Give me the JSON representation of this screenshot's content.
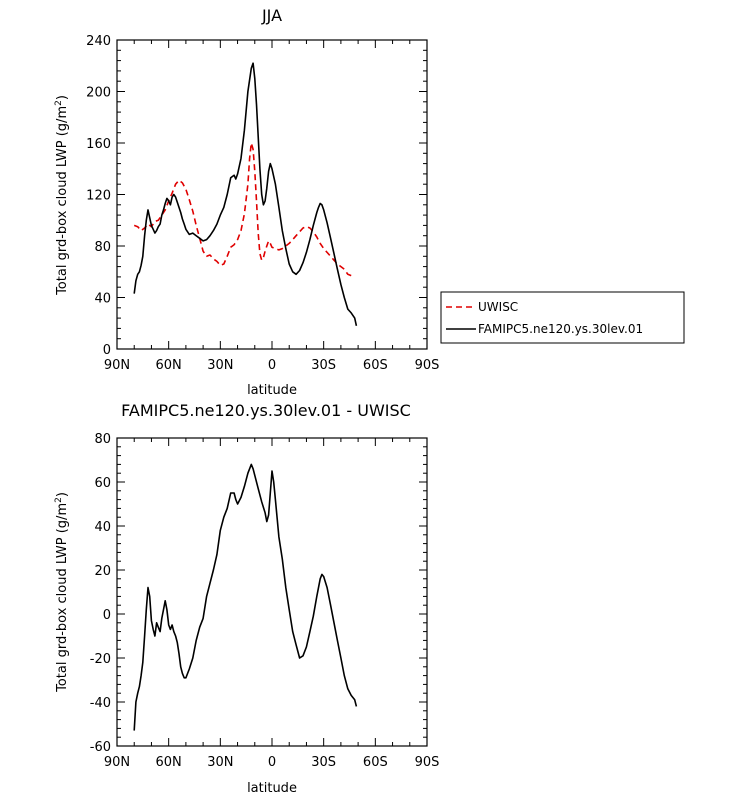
{
  "chart_data": [
    {
      "type": "line",
      "title": "JJA",
      "xlabel": "latitude",
      "ylabel_main": "Total grd-box cloud LWP",
      "ylabel_unit": "(g/m",
      "ylabel_exp": "2",
      "ylabel_close": ")",
      "xlim": [
        90,
        -90
      ],
      "ylim": [
        0,
        240
      ],
      "xticks": [
        {
          "v": 90,
          "label": "90N"
        },
        {
          "v": 60,
          "label": "60N"
        },
        {
          "v": 30,
          "label": "30N"
        },
        {
          "v": 0,
          "label": "0"
        },
        {
          "v": -30,
          "label": "30S"
        },
        {
          "v": -60,
          "label": "60S"
        },
        {
          "v": -90,
          "label": "90S"
        }
      ],
      "yticks": [
        {
          "v": 0,
          "label": "0"
        },
        {
          "v": 40,
          "label": "40"
        },
        {
          "v": 80,
          "label": "80"
        },
        {
          "v": 120,
          "label": "120"
        },
        {
          "v": 160,
          "label": "160"
        },
        {
          "v": 200,
          "label": "200"
        },
        {
          "v": 240,
          "label": "240"
        }
      ],
      "series": [
        {
          "name": "UWISC",
          "color": "#e00000",
          "dashed": true,
          "points": [
            [
              80,
              96
            ],
            [
              78,
              95
            ],
            [
              76,
              92
            ],
            [
              74,
              94
            ],
            [
              72,
              97
            ],
            [
              70,
              95
            ],
            [
              68,
              99
            ],
            [
              66,
              100
            ],
            [
              64,
              104
            ],
            [
              62,
              108
            ],
            [
              60,
              115
            ],
            [
              58,
              121
            ],
            [
              56,
              128
            ],
            [
              54,
              131
            ],
            [
              52,
              129
            ],
            [
              50,
              124
            ],
            [
              48,
              116
            ],
            [
              46,
              107
            ],
            [
              44,
              96
            ],
            [
              42,
              86
            ],
            [
              40,
              76
            ],
            [
              38,
              72
            ],
            [
              36,
              73
            ],
            [
              34,
              70
            ],
            [
              32,
              68
            ],
            [
              30,
              65
            ],
            [
              28,
              66
            ],
            [
              26,
              72
            ],
            [
              24,
              79
            ],
            [
              22,
              81
            ],
            [
              20,
              85
            ],
            [
              18,
              92
            ],
            [
              16,
              105
            ],
            [
              14,
              128
            ],
            [
              13,
              148
            ],
            [
              12,
              160
            ],
            [
              11,
              155
            ],
            [
              10,
              138
            ],
            [
              9,
              115
            ],
            [
              8,
              90
            ],
            [
              7,
              74
            ],
            [
              6,
              69
            ],
            [
              5,
              71
            ],
            [
              4,
              76
            ],
            [
              3,
              80
            ],
            [
              2,
              84
            ],
            [
              1,
              82
            ],
            [
              0,
              79
            ],
            [
              -2,
              78
            ],
            [
              -4,
              77
            ],
            [
              -6,
              78
            ],
            [
              -8,
              80
            ],
            [
              -10,
              82
            ],
            [
              -12,
              85
            ],
            [
              -14,
              88
            ],
            [
              -16,
              91
            ],
            [
              -18,
              94
            ],
            [
              -20,
              95
            ],
            [
              -22,
              94
            ],
            [
              -24,
              91
            ],
            [
              -26,
              87
            ],
            [
              -28,
              82
            ],
            [
              -30,
              78
            ],
            [
              -32,
              75
            ],
            [
              -34,
              72
            ],
            [
              -36,
              69
            ],
            [
              -38,
              66
            ],
            [
              -40,
              64
            ],
            [
              -42,
              62
            ],
            [
              -44,
              58
            ],
            [
              -46,
              57
            ]
          ]
        },
        {
          "name": "FAMIPC5.ne120.ys.30lev.01",
          "color": "#000000",
          "dashed": false,
          "points": [
            [
              80,
              43
            ],
            [
              79,
              53
            ],
            [
              78,
              58
            ],
            [
              77,
              60
            ],
            [
              76,
              65
            ],
            [
              75,
              72
            ],
            [
              74,
              88
            ],
            [
              73,
              100
            ],
            [
              72,
              108
            ],
            [
              71,
              102
            ],
            [
              70,
              96
            ],
            [
              69,
              93
            ],
            [
              68,
              90
            ],
            [
              67,
              92
            ],
            [
              66,
              95
            ],
            [
              65,
              97
            ],
            [
              64,
              104
            ],
            [
              63,
              108
            ],
            [
              62,
              113
            ],
            [
              61,
              117
            ],
            [
              60,
              115
            ],
            [
              59,
              112
            ],
            [
              58,
              118
            ],
            [
              57,
              120
            ],
            [
              56,
              118
            ],
            [
              55,
              114
            ],
            [
              54,
              110
            ],
            [
              53,
              106
            ],
            [
              52,
              101
            ],
            [
              51,
              97
            ],
            [
              50,
              93
            ],
            [
              48,
              89
            ],
            [
              46,
              90
            ],
            [
              44,
              88
            ],
            [
              42,
              86
            ],
            [
              40,
              84
            ],
            [
              38,
              85
            ],
            [
              36,
              88
            ],
            [
              34,
              92
            ],
            [
              32,
              97
            ],
            [
              30,
              104
            ],
            [
              28,
              110
            ],
            [
              26,
              120
            ],
            [
              24,
              133
            ],
            [
              22,
              135
            ],
            [
              21,
              132
            ],
            [
              20,
              136
            ],
            [
              18,
              148
            ],
            [
              16,
              170
            ],
            [
              14,
              200
            ],
            [
              12,
              218
            ],
            [
              11,
              222
            ],
            [
              10,
              210
            ],
            [
              9,
              190
            ],
            [
              8,
              165
            ],
            [
              7,
              140
            ],
            [
              6,
              120
            ],
            [
              5,
              112
            ],
            [
              4,
              115
            ],
            [
              3,
              125
            ],
            [
              2,
              138
            ],
            [
              1,
              144
            ],
            [
              0,
              140
            ],
            [
              -2,
              128
            ],
            [
              -4,
              110
            ],
            [
              -6,
              92
            ],
            [
              -8,
              78
            ],
            [
              -10,
              66
            ],
            [
              -12,
              60
            ],
            [
              -14,
              58
            ],
            [
              -16,
              61
            ],
            [
              -18,
              67
            ],
            [
              -20,
              75
            ],
            [
              -22,
              85
            ],
            [
              -24,
              96
            ],
            [
              -26,
              106
            ],
            [
              -27,
              110
            ],
            [
              -28,
              113
            ],
            [
              -29,
              112
            ],
            [
              -30,
              108
            ],
            [
              -32,
              98
            ],
            [
              -34,
              86
            ],
            [
              -36,
              74
            ],
            [
              -38,
              62
            ],
            [
              -40,
              50
            ],
            [
              -42,
              40
            ],
            [
              -44,
              31
            ],
            [
              -46,
              28
            ],
            [
              -48,
              24
            ],
            [
              -49,
              18
            ]
          ]
        }
      ],
      "legend": [
        {
          "label": "UWISC",
          "color": "#e00000",
          "dashed": true
        },
        {
          "label": "FAMIPC5.ne120.ys.30lev.01",
          "color": "#000000",
          "dashed": false
        }
      ]
    },
    {
      "type": "line",
      "title": "FAMIPC5.ne120.ys.30lev.01 - UWISC",
      "xlabel": "latitude",
      "ylabel_main": "Total grd-box cloud LWP",
      "ylabel_unit": "(g/m",
      "ylabel_exp": "2",
      "ylabel_close": ")",
      "xlim": [
        90,
        -90
      ],
      "ylim": [
        -60,
        80
      ],
      "xticks": [
        {
          "v": 90,
          "label": "90N"
        },
        {
          "v": 60,
          "label": "60N"
        },
        {
          "v": 30,
          "label": "30N"
        },
        {
          "v": 0,
          "label": "0"
        },
        {
          "v": -30,
          "label": "30S"
        },
        {
          "v": -60,
          "label": "60S"
        },
        {
          "v": -90,
          "label": "90S"
        }
      ],
      "yticks": [
        {
          "v": -60,
          "label": "-60"
        },
        {
          "v": -40,
          "label": "-40"
        },
        {
          "v": -20,
          "label": "-20"
        },
        {
          "v": 0,
          "label": "0"
        },
        {
          "v": 20,
          "label": "20"
        },
        {
          "v": 40,
          "label": "40"
        },
        {
          "v": 60,
          "label": "60"
        },
        {
          "v": 80,
          "label": "80"
        }
      ],
      "series": [
        {
          "name": "FAMIPC5.ne120.ys.30lev.01 - UWISC",
          "color": "#000000",
          "dashed": false,
          "points": [
            [
              80,
              -53
            ],
            [
              79,
              -40
            ],
            [
              78,
              -36
            ],
            [
              77,
              -33
            ],
            [
              76,
              -28
            ],
            [
              75,
              -22
            ],
            [
              74,
              -10
            ],
            [
              73,
              2
            ],
            [
              72,
              12
            ],
            [
              71,
              8
            ],
            [
              70,
              -3
            ],
            [
              69,
              -7
            ],
            [
              68,
              -10
            ],
            [
              67,
              -4
            ],
            [
              66,
              -6
            ],
            [
              65,
              -8
            ],
            [
              64,
              -2
            ],
            [
              63,
              2
            ],
            [
              62,
              6
            ],
            [
              61,
              2
            ],
            [
              60,
              -5
            ],
            [
              59,
              -7
            ],
            [
              58,
              -5
            ],
            [
              57,
              -8
            ],
            [
              56,
              -10
            ],
            [
              55,
              -13
            ],
            [
              54,
              -18
            ],
            [
              53,
              -24
            ],
            [
              52,
              -27
            ],
            [
              51,
              -29
            ],
            [
              50,
              -29
            ],
            [
              48,
              -25
            ],
            [
              46,
              -20
            ],
            [
              44,
              -12
            ],
            [
              42,
              -6
            ],
            [
              40,
              -2
            ],
            [
              38,
              8
            ],
            [
              36,
              14
            ],
            [
              34,
              20
            ],
            [
              32,
              27
            ],
            [
              30,
              38
            ],
            [
              28,
              44
            ],
            [
              26,
              48
            ],
            [
              24,
              55
            ],
            [
              22,
              55
            ],
            [
              21,
              52
            ],
            [
              20,
              50
            ],
            [
              18,
              53
            ],
            [
              16,
              58
            ],
            [
              14,
              64
            ],
            [
              12,
              68
            ],
            [
              11,
              66
            ],
            [
              10,
              63
            ],
            [
              8,
              57
            ],
            [
              6,
              51
            ],
            [
              4,
              46
            ],
            [
              3,
              42
            ],
            [
              2,
              45
            ],
            [
              1,
              55
            ],
            [
              0,
              65
            ],
            [
              -1,
              60
            ],
            [
              -2,
              52
            ],
            [
              -4,
              35
            ],
            [
              -6,
              25
            ],
            [
              -8,
              12
            ],
            [
              -10,
              2
            ],
            [
              -12,
              -8
            ],
            [
              -14,
              -14
            ],
            [
              -16,
              -20
            ],
            [
              -18,
              -19
            ],
            [
              -20,
              -15
            ],
            [
              -22,
              -8
            ],
            [
              -24,
              -1
            ],
            [
              -26,
              8
            ],
            [
              -28,
              16
            ],
            [
              -29,
              18
            ],
            [
              -30,
              17
            ],
            [
              -32,
              12
            ],
            [
              -34,
              4
            ],
            [
              -36,
              -4
            ],
            [
              -38,
              -12
            ],
            [
              -40,
              -20
            ],
            [
              -42,
              -28
            ],
            [
              -44,
              -34
            ],
            [
              -46,
              -37
            ],
            [
              -48,
              -39
            ],
            [
              -49,
              -42
            ]
          ]
        }
      ]
    }
  ]
}
